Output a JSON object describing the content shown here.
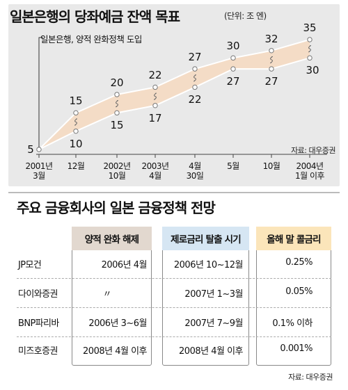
{
  "chart_data": {
    "type": "line",
    "title": "일본은행의 당좌예금 잔액 목표",
    "unit": "(단위: 조 엔)",
    "legend": "일본은행, 양적 완화정책 도입",
    "source": "자료: 대우증권",
    "x": [
      {
        "line1": "2001년",
        "line2": "3월"
      },
      {
        "line1": "12월",
        "line2": ""
      },
      {
        "line1": "2002년",
        "line2": "10월"
      },
      {
        "line1": "2003년",
        "line2": "4월"
      },
      {
        "line1": "4월",
        "line2": "30일"
      },
      {
        "line1": "5월",
        "line2": ""
      },
      {
        "line1": "10월",
        "line2": ""
      },
      {
        "line1": "2004년",
        "line2": "1월 이후"
      }
    ],
    "series": [
      {
        "values": [
          5,
          15,
          20,
          22,
          27,
          30,
          32,
          35
        ]
      },
      {
        "values": [
          5,
          10,
          15,
          17,
          22,
          27,
          27,
          30
        ]
      }
    ],
    "ylim": [
      0,
      40
    ],
    "grid": false,
    "colors": {
      "band": "#f4dcc6",
      "line": "#ffffff",
      "marker": "#ffffff",
      "panel": "#e9e9e9"
    }
  },
  "table": {
    "title": "주요 금융회사의 일본 금융정책 전망",
    "headers": [
      "양적 완화 해제",
      "제로금리 탈출 시기",
      "올해 말 콜금리"
    ],
    "header_colors": [
      "#e2d8cf",
      "#d6e6f3",
      "#fbe5ba"
    ],
    "rows": [
      {
        "company": "JP모건",
        "cells": [
          "2006년 4월",
          "2006년 10~12월",
          "0.25%"
        ]
      },
      {
        "company": "다이와증권",
        "cells": [
          "〃",
          "2007년 1~3월",
          "0.05%"
        ]
      },
      {
        "company": "BNP파리바",
        "cells": [
          "2006년 3~6월",
          "2007년 7~9월",
          "0.1% 이하"
        ]
      },
      {
        "company": "미즈호증권",
        "cells": [
          "2008년 4월 이후",
          "2008년 4월 이후",
          "0.001%"
        ]
      }
    ],
    "source": "자료: 대우증권"
  }
}
